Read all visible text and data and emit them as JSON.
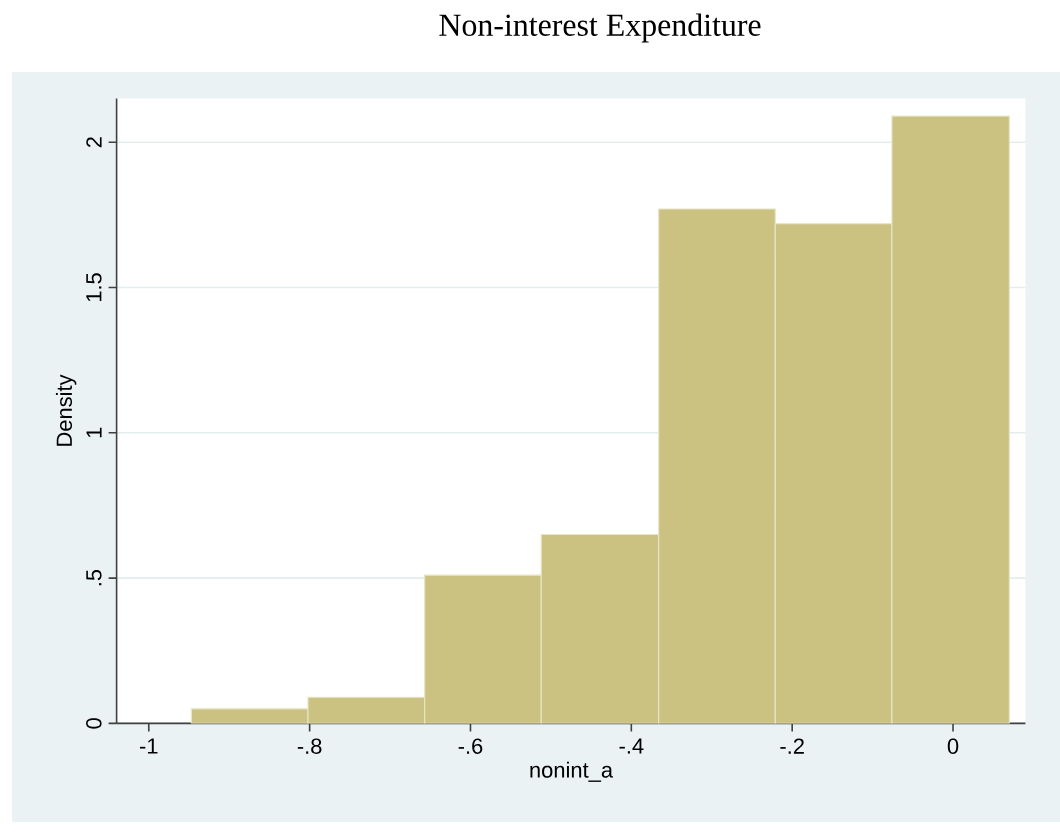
{
  "chart_data": {
    "type": "histogram",
    "title": "Non-interest Expenditure",
    "xlabel": "nonint_a",
    "ylabel": "Density",
    "bins": [
      -0.947,
      -0.802,
      -0.657,
      -0.512,
      -0.366,
      -0.221,
      -0.076,
      0.07
    ],
    "values": [
      0.05,
      0.09,
      0.51,
      0.65,
      1.77,
      1.72,
      2.09
    ],
    "color": "#cbc281",
    "xlim": [
      -1.04,
      0.09
    ],
    "ylim": [
      0,
      2.15
    ],
    "xticks": [
      -1,
      {
        "value": -0.8,
        "label": "-.8"
      },
      {
        "value": -0.6,
        "label": "-.6"
      },
      {
        "value": -0.4,
        "label": "-.4"
      },
      {
        "value": -0.2,
        "label": "-.2"
      },
      0
    ],
    "yticks": [
      0,
      {
        "value": 0.5,
        "label": ".5"
      },
      1,
      1.5,
      2
    ],
    "grid": "y"
  }
}
